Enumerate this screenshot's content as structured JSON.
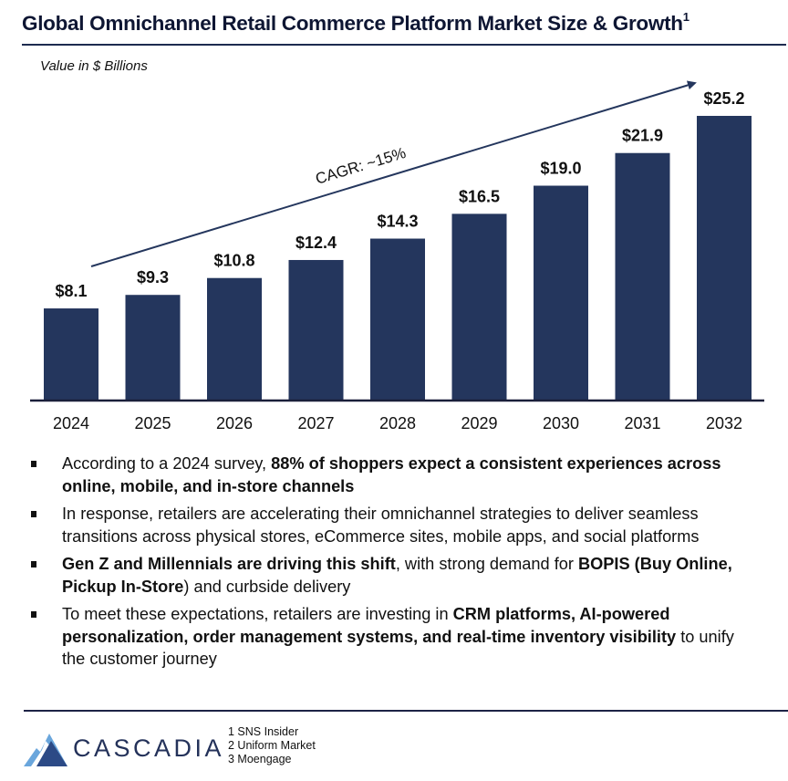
{
  "header": {
    "title": "Global Omnichannel Retail Commerce Platform Market Size & Growth",
    "title_footnote": "1",
    "unit_label": "Value in $ Billions"
  },
  "chart_data": {
    "type": "bar",
    "title": "Global Omnichannel Retail Commerce Platform Market Size & Growth",
    "xlabel": "",
    "ylabel": "Value in $ Billions",
    "categories": [
      "2024",
      "2025",
      "2026",
      "2027",
      "2028",
      "2029",
      "2030",
      "2031",
      "2032"
    ],
    "values": [
      8.1,
      9.3,
      10.8,
      12.4,
      14.3,
      16.5,
      19.0,
      21.9,
      25.2
    ],
    "data_labels": [
      "$8.1",
      "$9.3",
      "$10.8",
      "$12.4",
      "$14.3",
      "$16.5",
      "$19.0",
      "$21.9",
      "$25.2"
    ],
    "ylim": [
      0,
      25.2
    ],
    "grid": false,
    "legend": "none",
    "bar_color": "#24365d",
    "annotation": {
      "text": "CAGR: ~15%",
      "type": "arrow",
      "from": "2024",
      "to": "2032"
    }
  },
  "bullets": [
    {
      "segments": [
        {
          "text": "According to a 2024 survey, ",
          "bold": false
        },
        {
          "text": "88% of shoppers expect a consistent experiences across online, mobile, and in-store channels",
          "bold": true
        }
      ]
    },
    {
      "segments": [
        {
          "text": "In response, retailers are accelerating their omnichannel strategies to deliver seamless transitions across physical stores, eCommerce sites, mobile apps, and social platforms",
          "bold": false
        }
      ]
    },
    {
      "segments": [
        {
          "text": "Gen Z and Millennials are driving this shift",
          "bold": true
        },
        {
          "text": ", with strong demand for ",
          "bold": false
        },
        {
          "text": "BOPIS (Buy Online, Pickup In-Store",
          "bold": true
        },
        {
          "text": ") and curbside delivery",
          "bold": false
        }
      ]
    },
    {
      "segments": [
        {
          "text": "To meet these expectations, retailers are investing in ",
          "bold": false
        },
        {
          "text": "CRM platforms, AI-powered personalization, order management systems, and real-time inventory visibility",
          "bold": true
        },
        {
          "text": " to unify the customer journey",
          "bold": false
        }
      ]
    }
  ],
  "footer": {
    "brand": "CASCADIA",
    "logo_icon": "mountain-logo-icon",
    "sources": [
      "1 SNS Insider",
      "2 Uniform Market",
      "3 Moengage"
    ]
  },
  "colors": {
    "navy": "#24365d",
    "title": "#0e1633",
    "logo_light": "#6aa6dc",
    "logo_dark": "#2c4a86"
  }
}
